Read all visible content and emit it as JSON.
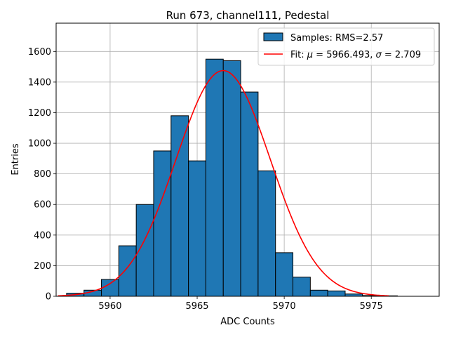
{
  "chart_data": {
    "type": "bar",
    "title": "Run 673, channel111, Pedestal",
    "xlabel": "ADC Counts",
    "ylabel": "Entries",
    "xlim": [
      5956.9,
      5978.9
    ],
    "ylim": [
      0,
      1785
    ],
    "xticks": [
      5960,
      5965,
      5970,
      5975
    ],
    "yticks": [
      0,
      200,
      400,
      600,
      800,
      1000,
      1200,
      1400,
      1600
    ],
    "grid": true,
    "legend_position": "top-right",
    "bin_width": 1,
    "series": [
      {
        "name": "Samples: RMS=2.57",
        "kind": "histogram",
        "color": "#1f77b4",
        "edge_color": "#000000",
        "bins": [
          {
            "x": 5958,
            "count": 20
          },
          {
            "x": 5959,
            "count": 40
          },
          {
            "x": 5960,
            "count": 110
          },
          {
            "x": 5961,
            "count": 330
          },
          {
            "x": 5962,
            "count": 600
          },
          {
            "x": 5963,
            "count": 950
          },
          {
            "x": 5964,
            "count": 1180
          },
          {
            "x": 5965,
            "count": 885
          },
          {
            "x": 5966,
            "count": 1550
          },
          {
            "x": 5967,
            "count": 1540
          },
          {
            "x": 5968,
            "count": 1335
          },
          {
            "x": 5969,
            "count": 820
          },
          {
            "x": 5970,
            "count": 285
          },
          {
            "x": 5971,
            "count": 125
          },
          {
            "x": 5972,
            "count": 40
          },
          {
            "x": 5973,
            "count": 35
          },
          {
            "x": 5974,
            "count": 15
          },
          {
            "x": 5975,
            "count": 5
          },
          {
            "x": 5976,
            "count": 3
          },
          {
            "x": 5977,
            "count": 0
          }
        ]
      },
      {
        "name": "Fit: μ = 5966.493, σ = 2.709",
        "name_parts": [
          "Fit: ",
          "μ",
          " = 5966.493, ",
          "σ",
          " = 2.709"
        ],
        "kind": "gaussian",
        "color": "#ff0000",
        "mu": 5966.493,
        "sigma": 2.709,
        "amplitude": 1475,
        "x_range": [
          5957,
          5976
        ]
      }
    ]
  }
}
